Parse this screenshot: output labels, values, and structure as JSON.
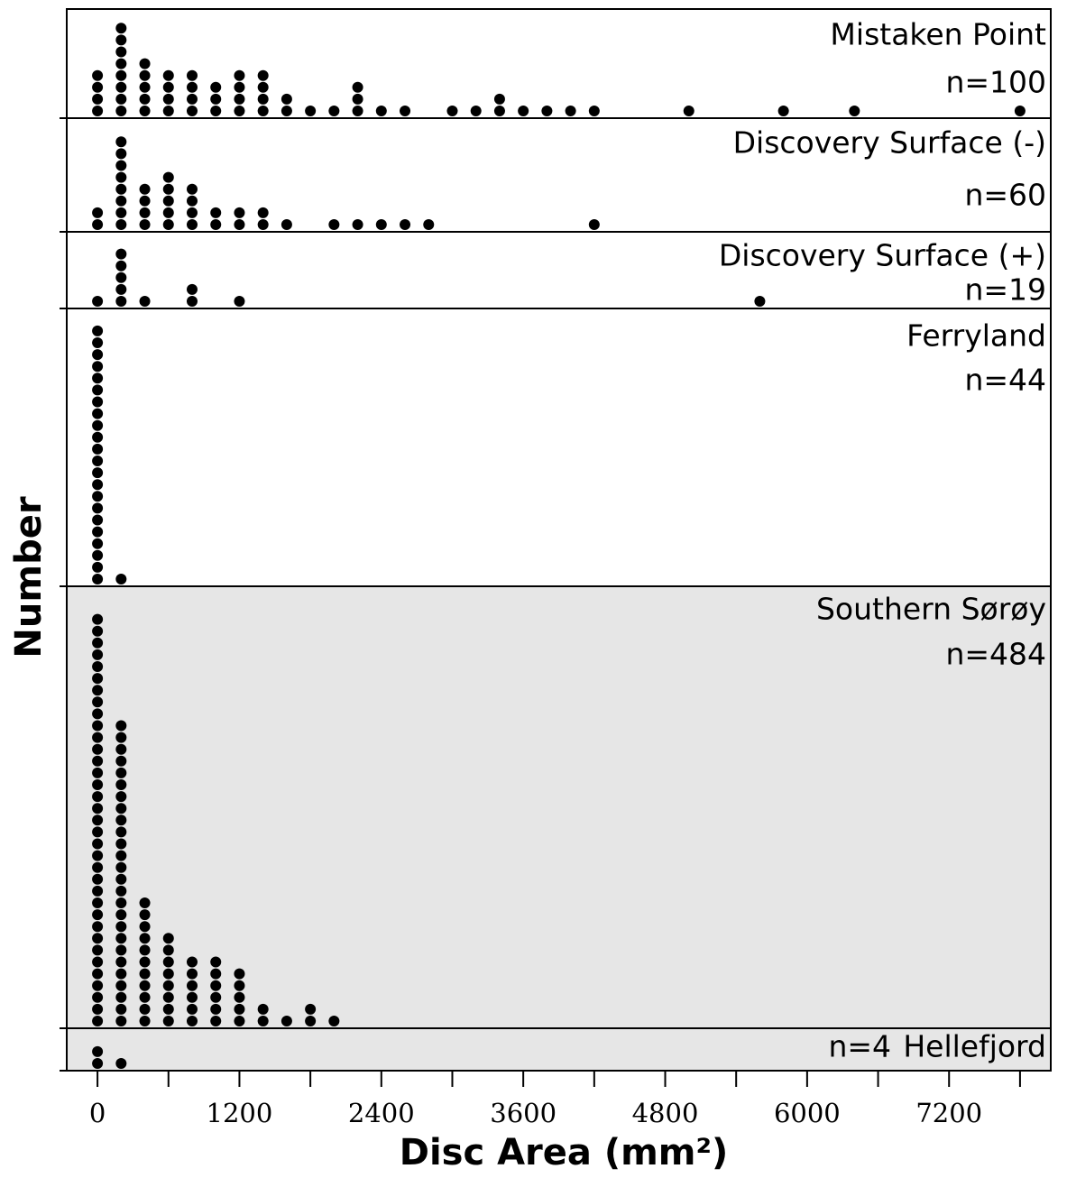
{
  "chart_data": {
    "type": "dot",
    "x_label": "Disc Area (mm²)",
    "y_label": "Number",
    "xlim": [
      -260,
      8060
    ],
    "xticks": [
      0,
      1200,
      2400,
      3600,
      4800,
      6000,
      7200
    ],
    "xminor": [
      600,
      1800,
      3000,
      4200,
      5400,
      6600,
      7800
    ],
    "color": "#000000",
    "panels": [
      {
        "name": "Mistaken Point",
        "n_label": "n=100",
        "background": "#ffffff",
        "x": [
          0,
          200,
          400,
          600,
          800,
          1000,
          1200,
          1400,
          1600,
          1800,
          2000,
          2200,
          2400,
          2600,
          3000,
          3200,
          3400,
          3600,
          3800,
          4000,
          4200,
          5000,
          5800,
          6400,
          7800
        ],
        "counts": [
          4,
          8,
          5,
          4,
          4,
          3,
          4,
          4,
          2,
          1,
          1,
          3,
          1,
          1,
          1,
          1,
          2,
          1,
          1,
          1,
          1,
          1,
          1,
          1,
          1
        ]
      },
      {
        "name": "Discovery Surface (-)",
        "n_label": "n=60",
        "background": "#ffffff",
        "x": [
          0,
          200,
          400,
          600,
          800,
          1000,
          1200,
          1400,
          1600,
          2000,
          2200,
          2400,
          2600,
          2800,
          4200
        ],
        "counts": [
          2,
          8,
          4,
          5,
          4,
          2,
          2,
          2,
          1,
          1,
          1,
          1,
          1,
          1,
          1
        ]
      },
      {
        "name": "Discovery Surface (+)",
        "n_label": "n=19",
        "background": "#ffffff",
        "x": [
          0,
          200,
          400,
          800,
          1200,
          5600
        ],
        "counts": [
          1,
          5,
          1,
          2,
          1,
          1
        ]
      },
      {
        "name": "Ferryland",
        "n_label": "n=44",
        "background": "#ffffff",
        "x": [
          0,
          200
        ],
        "counts": [
          22,
          1
        ]
      },
      {
        "name": "Southern Sørøy",
        "n_label": "n=484",
        "background": "#e6e6e6",
        "x": [
          0,
          200,
          400,
          600,
          800,
          1000,
          1200,
          1400,
          1600,
          1800,
          2000
        ],
        "counts": [
          35,
          26,
          11,
          8,
          6,
          6,
          5,
          2,
          1,
          2,
          1
        ]
      },
      {
        "name": "Hellefjord",
        "n_label": "n=4",
        "background": "#e6e6e6",
        "x": [
          0,
          200
        ],
        "counts": [
          2,
          1
        ]
      }
    ]
  }
}
